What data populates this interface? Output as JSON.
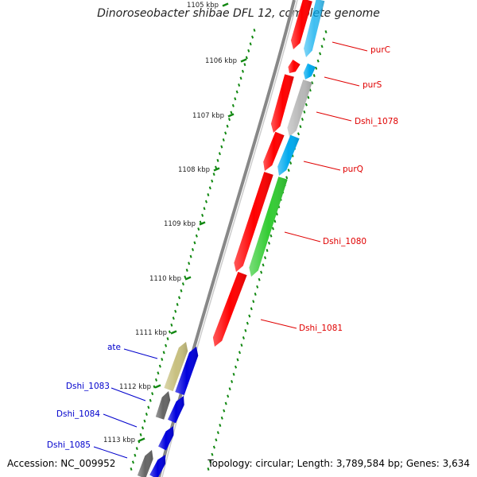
{
  "title": "Dinoroseobacter shibae DFL 12, complete genome",
  "footer": {
    "accession": "Accession: NC_009952",
    "summary": "Topology: circular; Length: 3,789,584 bp; Genes: 3,634"
  },
  "scale_ticks": [
    "1105 kbp",
    "1106 kbp",
    "1107 kbp",
    "1108 kbp",
    "1109 kbp",
    "1110 kbp",
    "1111 kbp",
    "1112 kbp",
    "1113 kbp"
  ],
  "gene_labels": [
    {
      "text": "purC",
      "color": "#e00000"
    },
    {
      "text": "purS",
      "color": "#e00000"
    },
    {
      "text": "Dshi_1078",
      "color": "#e00000"
    },
    {
      "text": "purQ",
      "color": "#e00000"
    },
    {
      "text": "Dshi_1080",
      "color": "#e00000"
    },
    {
      "text": "Dshi_1081",
      "color": "#e00000"
    },
    {
      "text": "ate",
      "color": "#0000cc"
    },
    {
      "text": "Dshi_1083",
      "color": "#0000cc"
    },
    {
      "text": "Dshi_1084",
      "color": "#0000cc"
    },
    {
      "text": "Dshi_1085",
      "color": "#0000cc"
    }
  ],
  "colors": {
    "red": "#ff0000",
    "cyan": "#00aaee",
    "grey": "#b8b8b8",
    "green": "#33cc33",
    "khaki": "#c8c080",
    "dark_grey": "#666666",
    "blue": "#0000dd",
    "backbone": "#888888",
    "tick": "#118811"
  }
}
